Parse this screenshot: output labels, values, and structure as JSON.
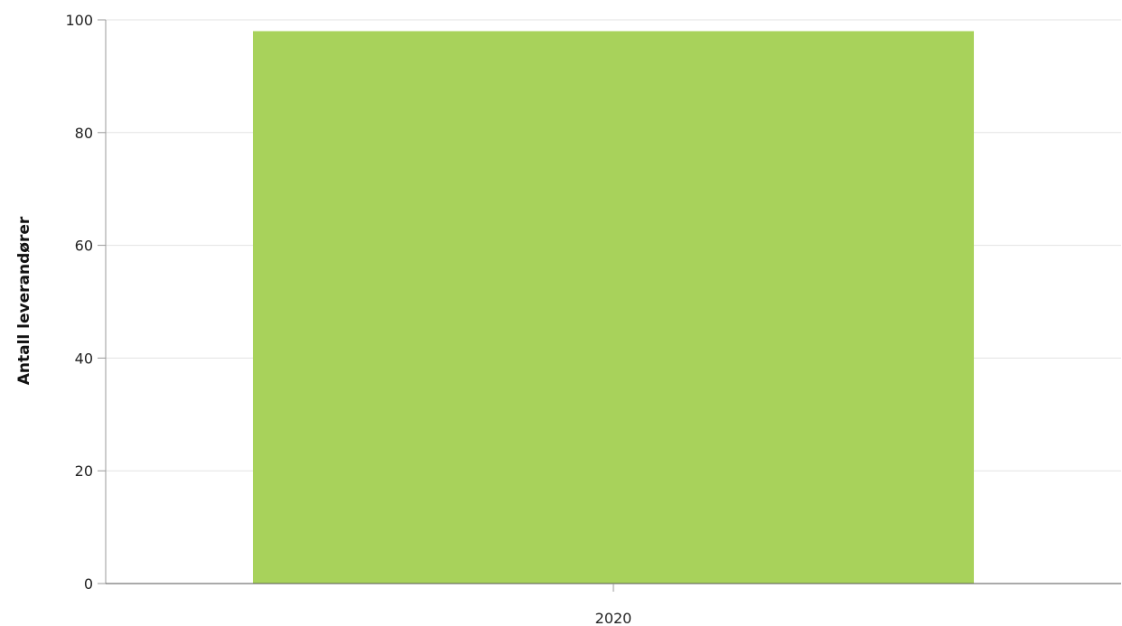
{
  "chart_data": {
    "type": "bar",
    "categories": [
      "2020"
    ],
    "series": [
      {
        "values": [
          98
        ]
      }
    ],
    "title": "",
    "xlabel": "",
    "ylabel": "Antall leverandører",
    "ylim": [
      0,
      100
    ],
    "yticks": [
      0,
      20,
      40,
      60,
      80,
      100
    ],
    "grid": true,
    "legend": "none",
    "bar_color": "#a8d25b"
  }
}
